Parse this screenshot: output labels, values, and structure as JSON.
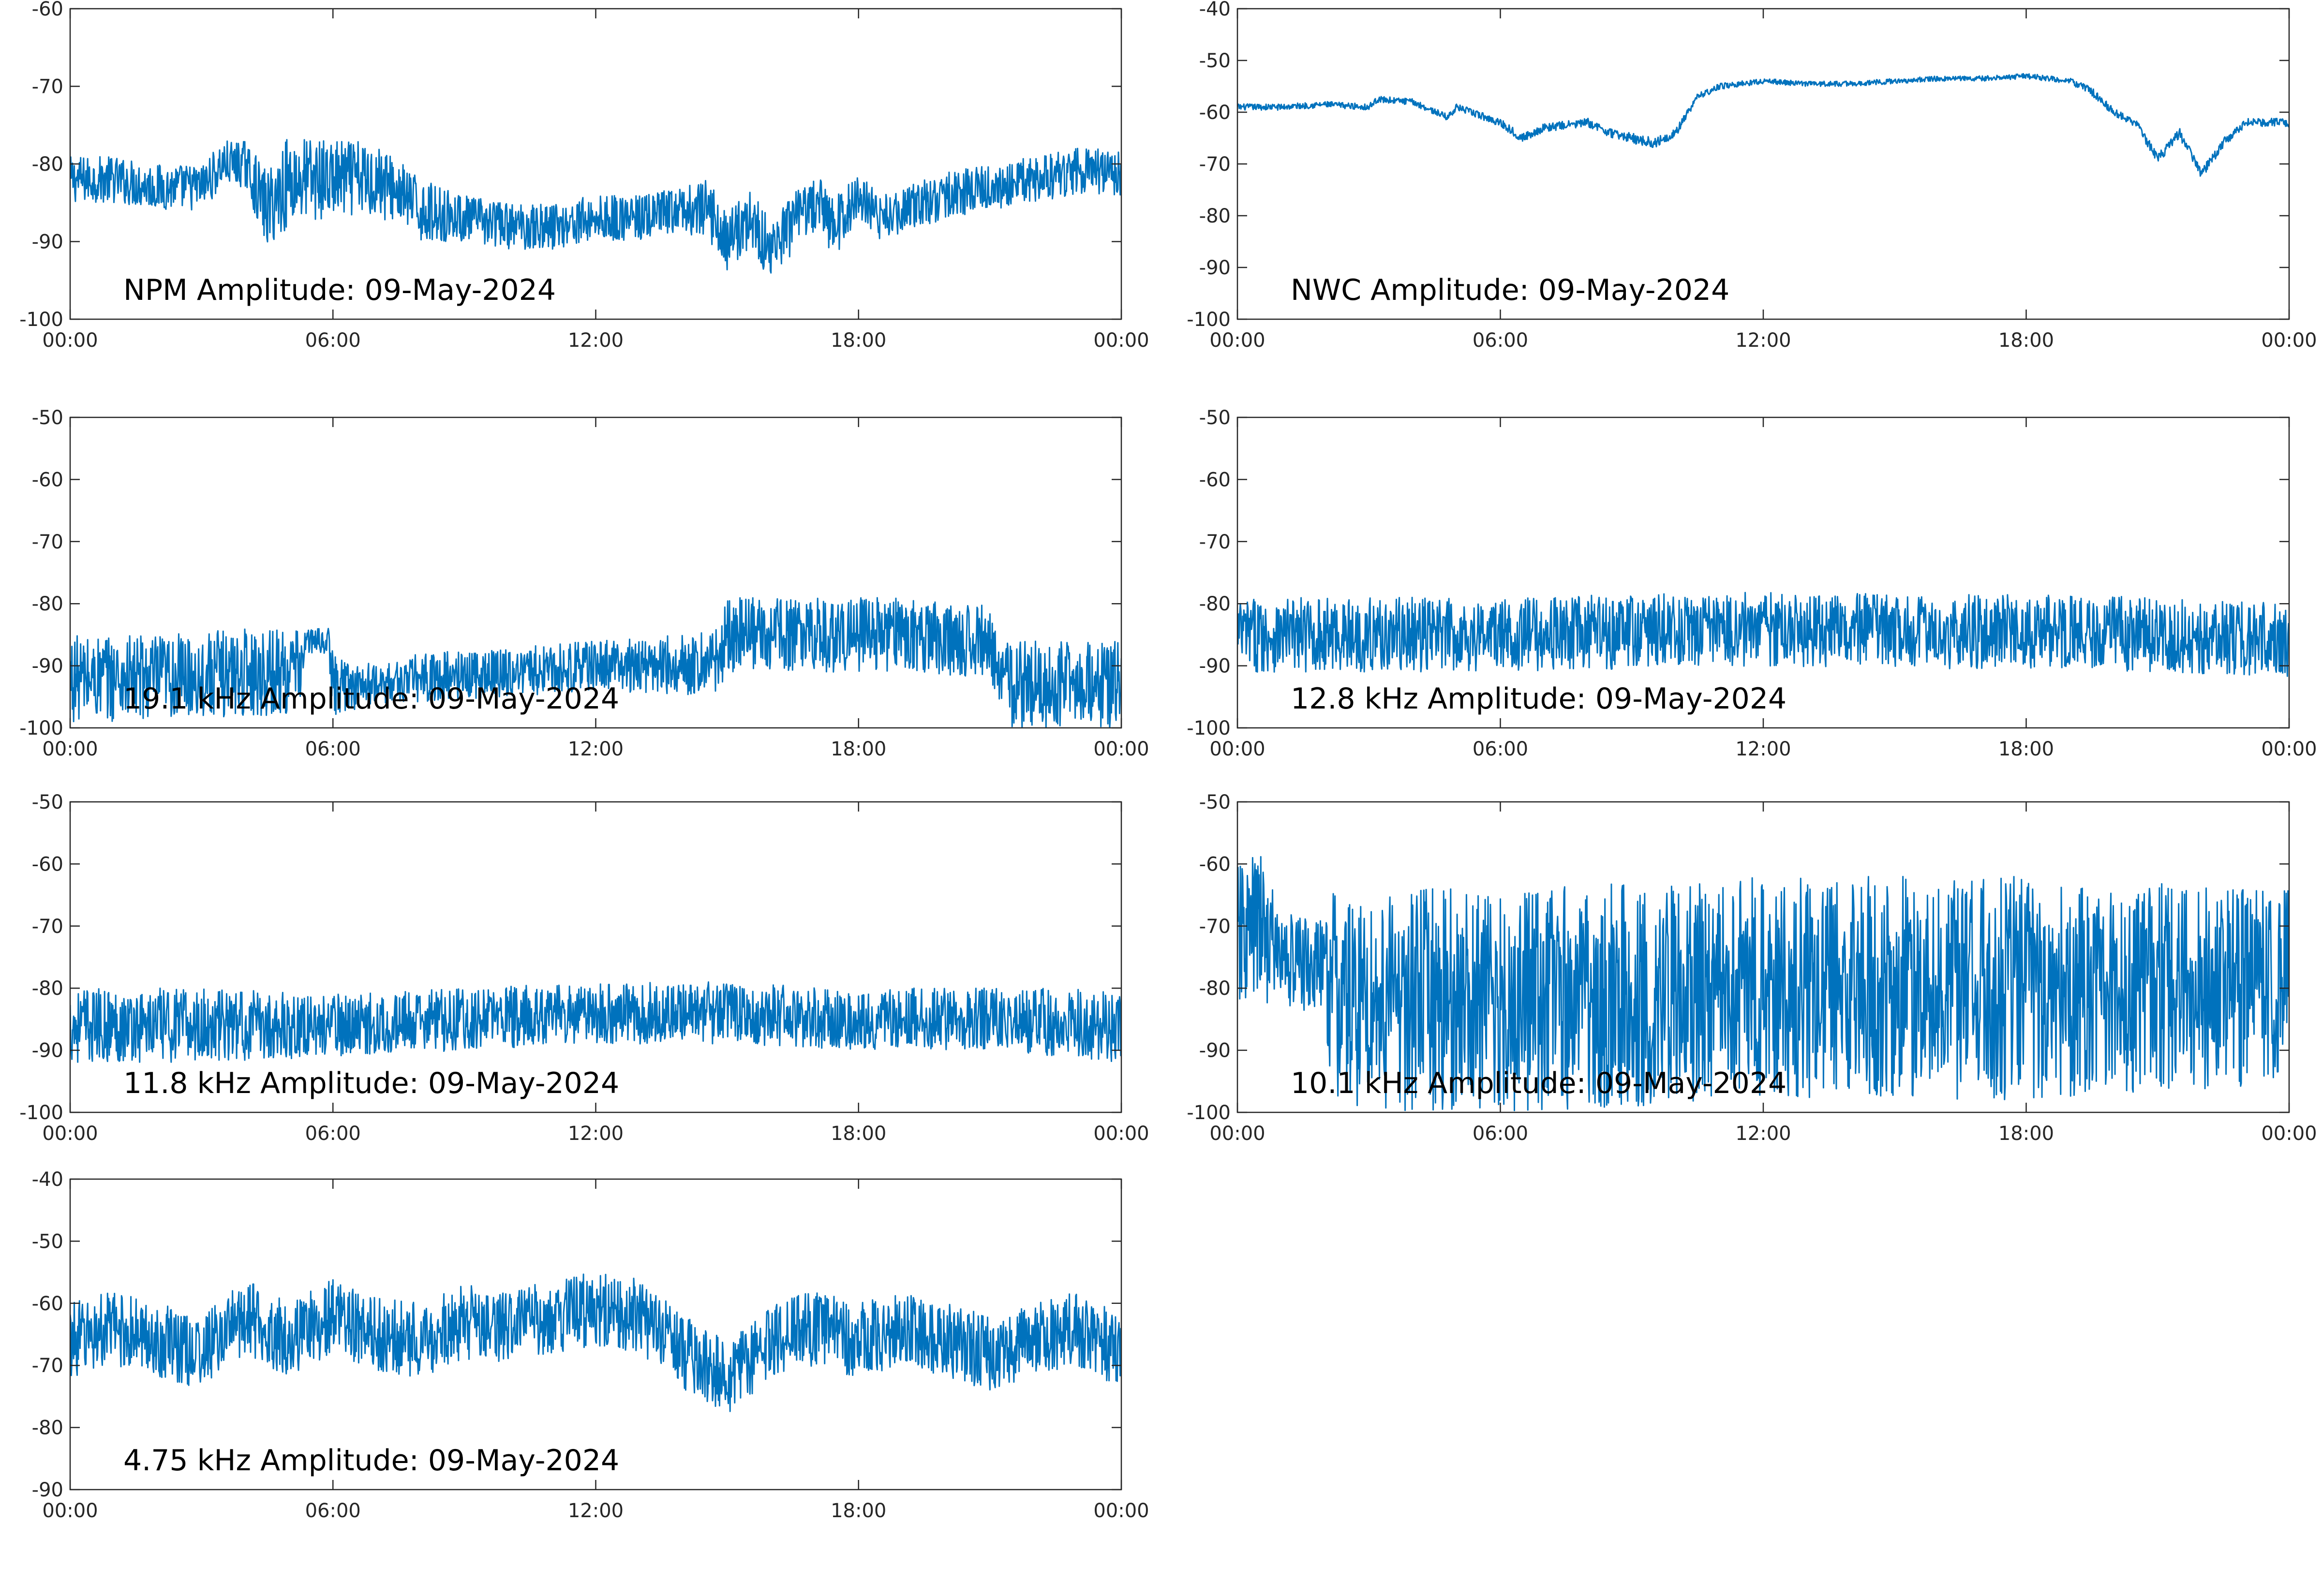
{
  "chart_data": [
    {
      "type": "line",
      "title": "NPM Amplitude: 09-May-2024",
      "x_unit": "hours",
      "xlim": [
        0,
        24
      ],
      "xticks": [
        "00:00",
        "06:00",
        "12:00",
        "18:00",
        "00:00"
      ],
      "ylim": [
        -100,
        -60
      ],
      "yticks": [
        "-60",
        "-70",
        "-80",
        "-90",
        "-100"
      ],
      "grid": false,
      "series": [
        {
          "color": "#0072bd",
          "x": [
            0,
            1,
            2,
            3,
            3.5,
            4,
            4.5,
            5,
            6,
            7,
            7.6,
            8,
            9,
            10,
            11,
            12,
            13,
            14,
            14.6,
            15,
            15.5,
            16,
            16.5,
            17,
            17.5,
            18,
            18.5,
            19,
            20,
            21,
            22,
            23,
            24
          ],
          "y": [
            -82,
            -82,
            -83,
            -83,
            -80,
            -80,
            -86,
            -82,
            -82,
            -82,
            -84,
            -86,
            -87,
            -88,
            -88,
            -87,
            -87,
            -86,
            -86,
            -90,
            -87,
            -91,
            -88,
            -85,
            -88,
            -84,
            -87,
            -86,
            -84,
            -83,
            -82,
            -81,
            -81
          ],
          "noise": [
            3,
            3,
            3,
            3,
            3,
            3,
            5,
            6,
            5,
            5,
            4,
            4,
            3,
            3,
            3,
            3,
            3,
            3,
            4,
            4,
            4,
            4,
            4,
            4,
            4,
            3,
            3,
            3,
            3,
            3,
            3,
            3,
            3
          ]
        }
      ]
    },
    {
      "type": "line",
      "title": "NWC Amplitude: 09-May-2024",
      "x_unit": "hours",
      "xlim": [
        0,
        24
      ],
      "xticks": [
        "00:00",
        "06:00",
        "12:00",
        "18:00",
        "00:00"
      ],
      "ylim": [
        -100,
        -40
      ],
      "yticks": [
        "-40",
        "-50",
        "-60",
        "-70",
        "-80",
        "-90",
        "-100"
      ],
      "grid": false,
      "series": [
        {
          "color": "#0072bd",
          "x": [
            0,
            1,
            2,
            3,
            3.2,
            4,
            4.8,
            5,
            6,
            6.5,
            7,
            8,
            8.5,
            9,
            9.5,
            10,
            10.5,
            11,
            12,
            13,
            14,
            15,
            16,
            17,
            18,
            19,
            19.5,
            20,
            20.5,
            21,
            21.5,
            22,
            22.5,
            23,
            24
          ],
          "y": [
            -59,
            -59,
            -58.5,
            -59,
            -57.5,
            -58,
            -61,
            -59,
            -62,
            -65,
            -63,
            -62,
            -64,
            -65,
            -66,
            -64,
            -57,
            -55,
            -54,
            -54.5,
            -54.5,
            -54,
            -53.5,
            -53.5,
            -53,
            -54,
            -56,
            -60,
            -62,
            -69,
            -64,
            -72,
            -66,
            -62,
            -62
          ],
          "noise": [
            0.6,
            0.6,
            0.6,
            0.6,
            0.6,
            0.6,
            0.6,
            0.6,
            0.8,
            0.8,
            0.8,
            0.8,
            0.8,
            1,
            1,
            0.8,
            0.6,
            0.6,
            0.5,
            0.5,
            0.5,
            0.5,
            0.5,
            0.5,
            0.5,
            0.6,
            0.8,
            0.8,
            0.8,
            1,
            1,
            1,
            1,
            0.8,
            0.8
          ]
        }
      ]
    },
    {
      "type": "line",
      "title": "19.1 kHz Amplitude: 09-May-2024",
      "x_unit": "hours",
      "xlim": [
        0,
        24
      ],
      "xticks": [
        "00:00",
        "06:00",
        "12:00",
        "18:00",
        "00:00"
      ],
      "ylim": [
        -100,
        -50
      ],
      "yticks": [
        "-50",
        "-60",
        "-70",
        "-80",
        "-90",
        "-100"
      ],
      "grid": false,
      "series": [
        {
          "color": "#0072bd",
          "x": [
            0,
            2,
            4,
            5.2,
            5.4,
            5.9,
            6,
            7,
            8,
            10,
            12,
            14,
            14.8,
            15,
            17,
            19,
            21,
            21.4,
            22,
            24
          ],
          "y": [
            -92,
            -92,
            -91,
            -91,
            -86,
            -86,
            -93,
            -93,
            -92,
            -91,
            -90,
            -90,
            -89,
            -85,
            -85,
            -85,
            -86,
            -93,
            -93,
            -93
          ],
          "noise": [
            7,
            7,
            7,
            7,
            2,
            2,
            5,
            3,
            4,
            4,
            4,
            5,
            5,
            6,
            6,
            6,
            6,
            7,
            7,
            7
          ]
        }
      ]
    },
    {
      "type": "line",
      "title": "12.8 kHz Amplitude: 09-May-2024",
      "x_unit": "hours",
      "xlim": [
        0,
        24
      ],
      "xticks": [
        "00:00",
        "06:00",
        "12:00",
        "18:00",
        "00:00"
      ],
      "ylim": [
        -100,
        -50
      ],
      "yticks": [
        "-50",
        "-60",
        "-70",
        "-80",
        "-90",
        "-100"
      ],
      "grid": false,
      "series": [
        {
          "color": "#0072bd",
          "x": [
            0,
            3,
            6,
            9,
            12,
            15,
            18,
            21,
            24
          ],
          "y": [
            -85,
            -85,
            -85,
            -84.5,
            -84,
            -84.5,
            -84.5,
            -85,
            -86
          ],
          "noise": [
            6,
            6,
            6,
            6,
            6,
            6,
            6,
            6,
            6
          ]
        }
      ]
    },
    {
      "type": "line",
      "title": "11.8 kHz Amplitude: 09-May-2024",
      "x_unit": "hours",
      "xlim": [
        0,
        24
      ],
      "xticks": [
        "00:00",
        "06:00",
        "12:00",
        "18:00",
        "00:00"
      ],
      "ylim": [
        -100,
        -50
      ],
      "yticks": [
        "-50",
        "-60",
        "-70",
        "-80",
        "-90",
        "-100"
      ],
      "grid": false,
      "series": [
        {
          "color": "#0072bd",
          "x": [
            0,
            3,
            6,
            9,
            12,
            15,
            18,
            21,
            24
          ],
          "y": [
            -86,
            -86,
            -86,
            -85,
            -84,
            -84,
            -85,
            -85,
            -86
          ],
          "noise": [
            6,
            6,
            5,
            5,
            5,
            5,
            5,
            5,
            6
          ]
        }
      ]
    },
    {
      "type": "line",
      "title": "10.1 kHz Amplitude: 09-May-2024",
      "x_unit": "hours",
      "xlim": [
        0,
        24
      ],
      "xticks": [
        "00:00",
        "06:00",
        "12:00",
        "18:00",
        "00:00"
      ],
      "ylim": [
        -100,
        -50
      ],
      "yticks": [
        "-50",
        "-60",
        "-70",
        "-80",
        "-90",
        "-100"
      ],
      "grid": false,
      "series": [
        {
          "color": "#0072bd",
          "x": [
            0,
            0.5,
            1,
            2,
            2.2,
            6,
            12,
            18,
            24
          ],
          "y": [
            -72,
            -70,
            -75,
            -77,
            -82,
            -82,
            -80,
            -80,
            -80
          ],
          "noise": [
            12,
            12,
            8,
            8,
            18,
            18,
            18,
            18,
            16
          ]
        }
      ]
    },
    {
      "type": "line",
      "title": "4.75 kHz Amplitude: 09-May-2024",
      "x_unit": "hours",
      "xlim": [
        0,
        24
      ],
      "xticks": [
        "00:00",
        "06:00",
        "12:00",
        "18:00",
        "00:00"
      ],
      "ylim": [
        -90,
        -40
      ],
      "yticks": [
        "-40",
        "-50",
        "-60",
        "-70",
        "-80",
        "-90"
      ],
      "grid": false,
      "series": [
        {
          "color": "#0072bd",
          "x": [
            0,
            1,
            2,
            3,
            4,
            5,
            6,
            7,
            8,
            9,
            10,
            11,
            12,
            13,
            14,
            15,
            16,
            17,
            18,
            19,
            20,
            21,
            22,
            23,
            24
          ],
          "y": [
            -66,
            -64,
            -66,
            -68,
            -62,
            -66,
            -62,
            -65,
            -66,
            -63,
            -64,
            -62,
            -61,
            -62,
            -68,
            -72,
            -66,
            -64,
            -66,
            -64,
            -66,
            -68,
            -66,
            -64,
            -68
          ],
          "noise": [
            6,
            6,
            6,
            6,
            6,
            6,
            6,
            6,
            6,
            6,
            6,
            6,
            6,
            6,
            6,
            6,
            6,
            6,
            6,
            6,
            6,
            6,
            6,
            6,
            6
          ]
        }
      ]
    }
  ]
}
